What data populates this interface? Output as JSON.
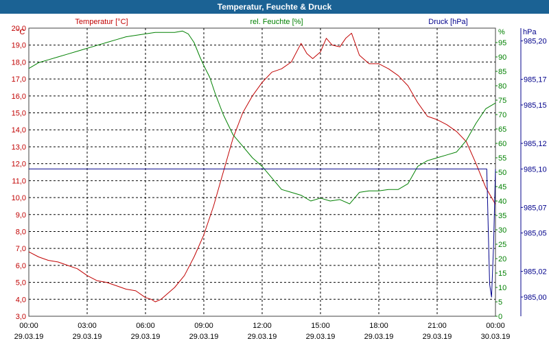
{
  "window": {
    "title": "Temperatur, Feuchte & Druck"
  },
  "chart_data": {
    "type": "line",
    "title": "Temperatur, Feuchte & Druck",
    "grid": true,
    "x": {
      "range": [
        0,
        24
      ],
      "ticks": [
        0,
        3,
        6,
        9,
        12,
        15,
        18,
        21,
        24
      ],
      "time_labels": [
        "00:00",
        "03:00",
        "06:00",
        "09:00",
        "12:00",
        "15:00",
        "18:00",
        "21:00",
        "00:00"
      ],
      "date_labels": [
        "29.03.19",
        "29.03.19",
        "29.03.19",
        "29.03.19",
        "29.03.19",
        "29.03.19",
        "29.03.19",
        "29.03.19",
        "30.03.19"
      ]
    },
    "axes": {
      "temp": {
        "label": "Temperatur [°C]",
        "unit": "°C",
        "color": "#c00000",
        "range": [
          3.0,
          20.0
        ],
        "ticks": [
          "3,0",
          "4,0",
          "5,0",
          "6,0",
          "7,0",
          "8,0",
          "9,0",
          "10,0",
          "11,0",
          "12,0",
          "13,0",
          "14,0",
          "15,0",
          "16,0",
          "17,0",
          "18,0",
          "19,0",
          "20,0"
        ]
      },
      "hum": {
        "label": "rel. Feuchte [%]",
        "unit": "%",
        "color": "#008000",
        "range": [
          0,
          100
        ],
        "ticks": [
          "0",
          "5",
          "10",
          "15",
          "20",
          "25",
          "30",
          "35",
          "40",
          "45",
          "50",
          "55",
          "60",
          "65",
          "70",
          "75",
          "80",
          "85",
          "90",
          "95"
        ]
      },
      "press": {
        "label": "Druck [hPa]",
        "unit": "hPa",
        "color": "#00008b",
        "range": [
          984.985,
          985.21
        ],
        "ticks": [
          "985,00",
          "985,02",
          "985,05",
          "985,07",
          "985,10",
          "985,12",
          "985,15",
          "985,17",
          "985,20"
        ]
      }
    },
    "series": [
      {
        "name": "Temperatur [°C]",
        "axis": "temp",
        "color": "#c00000",
        "x": [
          0,
          0.5,
          1.0,
          1.5,
          2.0,
          2.5,
          3.0,
          3.5,
          4.0,
          4.5,
          5.0,
          5.5,
          6.0,
          6.3,
          6.5,
          6.8,
          7.0,
          7.5,
          8.0,
          8.5,
          9.0,
          9.5,
          10.0,
          10.5,
          11.0,
          11.5,
          12.0,
          12.5,
          13.0,
          13.5,
          14.0,
          14.3,
          14.6,
          15.0,
          15.3,
          15.6,
          16.0,
          16.3,
          16.6,
          17.0,
          17.5,
          18.0,
          18.5,
          19.0,
          19.5,
          20.0,
          20.5,
          21.0,
          21.5,
          22.0,
          22.5,
          23.0,
          23.5,
          24.0
        ],
        "y": [
          6.8,
          6.5,
          6.3,
          6.2,
          6.0,
          5.8,
          5.4,
          5.1,
          5.0,
          4.8,
          4.6,
          4.5,
          4.1,
          4.0,
          3.85,
          4.0,
          4.2,
          4.7,
          5.4,
          6.5,
          7.8,
          9.5,
          11.5,
          13.5,
          15.0,
          16.0,
          16.8,
          17.4,
          17.6,
          18.0,
          19.1,
          18.5,
          18.2,
          18.6,
          19.4,
          19.0,
          18.9,
          19.4,
          19.7,
          18.4,
          17.9,
          17.9,
          17.6,
          17.2,
          16.6,
          15.6,
          14.8,
          14.6,
          14.3,
          13.9,
          13.3,
          12.0,
          10.6,
          9.6
        ]
      },
      {
        "name": "rel. Feuchte [%]",
        "axis": "hum",
        "color": "#008000",
        "x": [
          0,
          0.5,
          1.0,
          1.5,
          2.0,
          2.5,
          3.0,
          3.5,
          4.0,
          4.5,
          5.0,
          5.5,
          6.0,
          6.5,
          7.0,
          7.5,
          7.9,
          8.2,
          8.5,
          8.8,
          9.0,
          9.3,
          9.6,
          10.0,
          10.5,
          11.0,
          11.5,
          12.0,
          12.5,
          13.0,
          13.5,
          14.0,
          14.5,
          15.0,
          15.5,
          16.0,
          16.5,
          17.0,
          17.5,
          18.0,
          18.5,
          19.0,
          19.5,
          20.0,
          20.5,
          21.0,
          21.5,
          22.0,
          22.5,
          23.0,
          23.5,
          24.0
        ],
        "y": [
          86,
          88,
          89,
          90,
          91,
          92,
          93,
          94,
          95,
          96,
          97,
          97.5,
          98,
          98.5,
          98.5,
          98.5,
          99,
          98,
          95,
          90,
          87,
          83,
          77,
          70,
          63,
          59,
          55,
          52,
          48,
          44,
          43,
          42,
          40,
          41,
          40,
          40.5,
          39,
          43,
          43.5,
          43.5,
          44,
          44,
          46,
          52,
          54,
          55,
          56,
          57,
          61,
          67,
          72,
          74
        ]
      },
      {
        "name": "Druck [hPa]",
        "axis": "press",
        "color": "#00008b",
        "x": [
          0,
          1,
          2,
          3,
          4,
          5,
          6,
          7,
          8,
          9,
          10,
          11,
          12,
          13,
          14,
          15,
          16,
          17,
          18,
          19,
          20,
          21,
          22,
          23,
          23.55,
          23.7,
          23.8,
          23.9,
          24.0
        ],
        "y": [
          985.1,
          985.1,
          985.1,
          985.1,
          985.1,
          985.1,
          985.1,
          985.1,
          985.1,
          985.1,
          985.1,
          985.1,
          985.1,
          985.1,
          985.1,
          985.1,
          985.1,
          985.1,
          985.1,
          985.1,
          985.1,
          985.1,
          985.1,
          985.1,
          985.1,
          985.01,
          985.0,
          985.04,
          985.1
        ]
      }
    ]
  }
}
